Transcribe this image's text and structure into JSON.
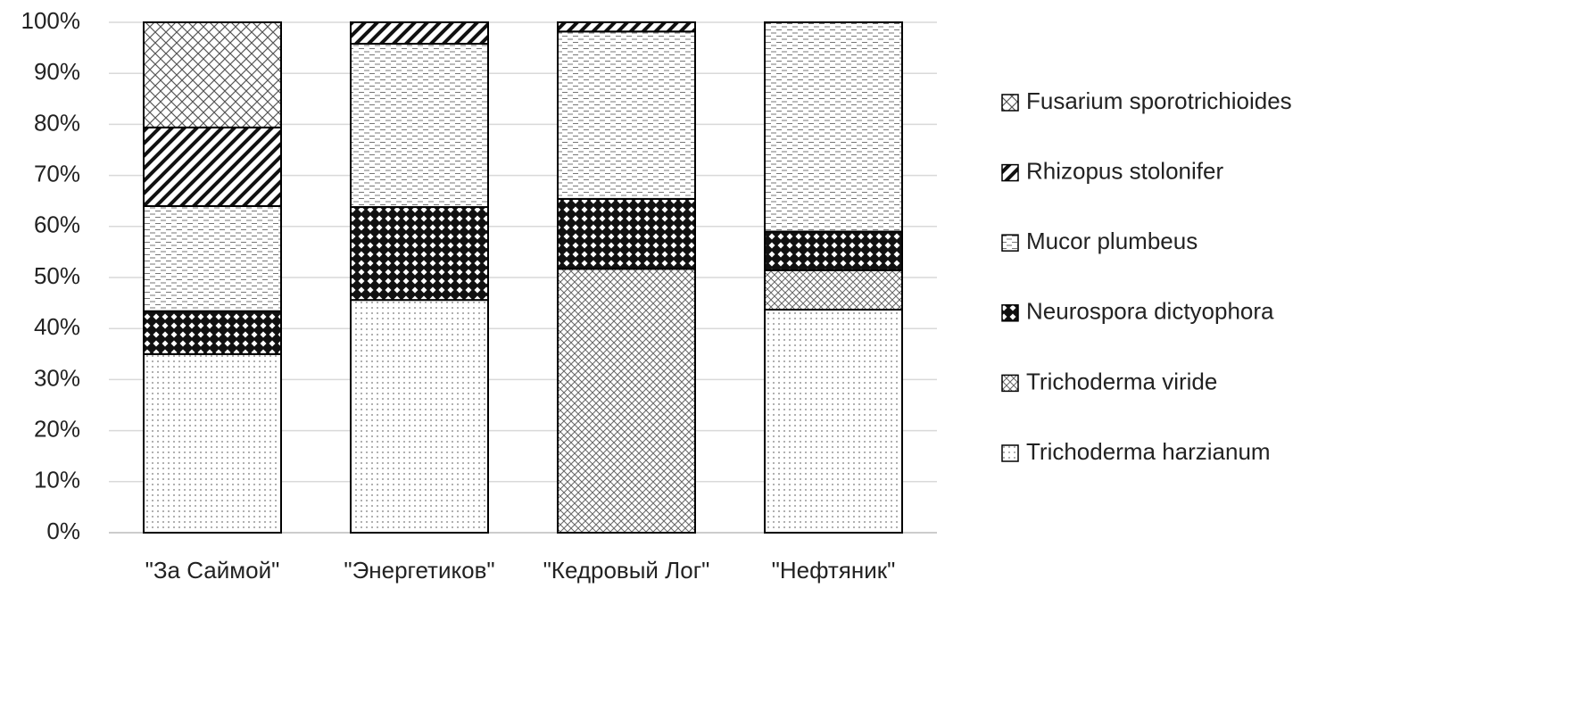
{
  "chart_data": {
    "type": "stacked-bar-100",
    "categories": [
      "\"За Саймой\"",
      "\"Энергетиков\"",
      "\"Кедровый Лог\"",
      "\"Нефтяник\""
    ],
    "series": [
      {
        "name": "Trichoderma harzianum",
        "pattern": "dots",
        "values": [
          35,
          45.6,
          0,
          43.7
        ]
      },
      {
        "name": "Trichoderma viride",
        "pattern": "fine-crosshatch",
        "values": [
          0,
          0,
          51.7,
          7.7
        ]
      },
      {
        "name": "Neurospora dictyophora",
        "pattern": "checker",
        "values": [
          8.4,
          18.2,
          13.7,
          7.6
        ]
      },
      {
        "name": "Mucor plumbeus",
        "pattern": "dashes",
        "values": [
          20.6,
          32,
          32.8,
          41
        ]
      },
      {
        "name": "Rhizopus stolonifer",
        "pattern": "wide-diagonal",
        "values": [
          15.4,
          4.2,
          1.8,
          0
        ]
      },
      {
        "name": "Fusarium sporotrichioides",
        "pattern": "weave",
        "values": [
          20.6,
          0,
          0,
          0
        ]
      }
    ],
    "ylim": [
      0,
      100
    ],
    "yticks": [
      {
        "value": 0,
        "label": "0%"
      },
      {
        "value": 10,
        "label": "10%"
      },
      {
        "value": 20,
        "label": "20%"
      },
      {
        "value": 30,
        "label": "30%"
      },
      {
        "value": 40,
        "label": "40%"
      },
      {
        "value": 50,
        "label": "50%"
      },
      {
        "value": 60,
        "label": "60%"
      },
      {
        "value": 70,
        "label": "70%"
      },
      {
        "value": 80,
        "label": "80%"
      },
      {
        "value": 90,
        "label": "90%"
      },
      {
        "value": 100,
        "label": "100%"
      }
    ],
    "grid": true,
    "legend": "right"
  }
}
